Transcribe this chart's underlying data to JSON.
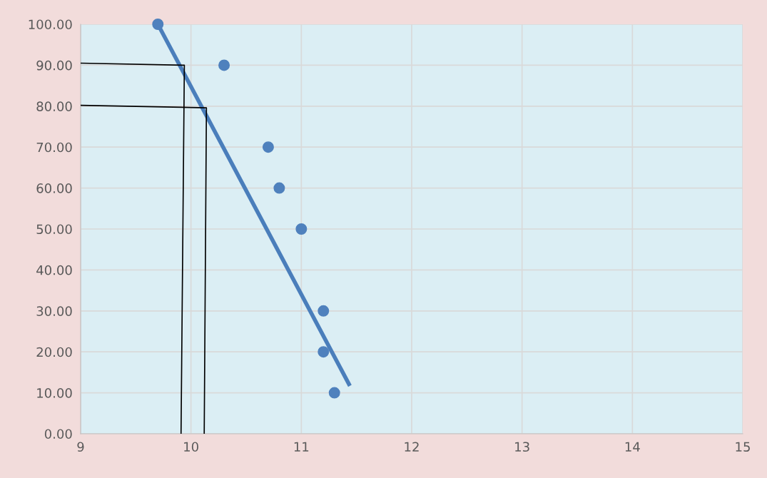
{
  "chart_data": {
    "type": "scatter",
    "xlim": [
      9,
      15
    ],
    "xticks": [
      9,
      10,
      11,
      12,
      13,
      14,
      15
    ],
    "ylim": [
      0,
      100
    ],
    "yticks": [
      {
        "value": 0,
        "label": "0.00"
      },
      {
        "value": 10,
        "label": "10.00"
      },
      {
        "value": 20,
        "label": "20.00"
      },
      {
        "value": 30,
        "label": "30.00"
      },
      {
        "value": 40,
        "label": "40.00"
      },
      {
        "value": 50,
        "label": "50.00"
      },
      {
        "value": 60,
        "label": "60.00"
      },
      {
        "value": 70,
        "label": "70.00"
      },
      {
        "value": 80,
        "label": "80.00"
      },
      {
        "value": 90,
        "label": "90.00"
      },
      {
        "value": 100,
        "label": "100.00"
      }
    ],
    "grid": true,
    "series": [
      {
        "type": "line",
        "marker": "none",
        "color": "#4a7ebb",
        "x": [
          9.7,
          11.44
        ],
        "values": [
          100,
          11.7
        ]
      },
      {
        "type": "line",
        "marker": "none",
        "color": "#000000",
        "x": [
          9,
          9.94,
          9.91
        ],
        "values": [
          90.5,
          90,
          0
        ]
      },
      {
        "type": "line",
        "marker": "none",
        "color": "#000000",
        "x": [
          9,
          10.14,
          10.12
        ],
        "values": [
          80.2,
          79.6,
          0
        ]
      },
      {
        "marker": "circle",
        "color": "#4f81bd",
        "x": [
          9.7,
          10.3,
          10.7,
          10.8,
          11.0,
          11.2,
          11.2,
          11.3
        ],
        "values": [
          100,
          90,
          70,
          60,
          50,
          30,
          20,
          10
        ]
      }
    ]
  }
}
